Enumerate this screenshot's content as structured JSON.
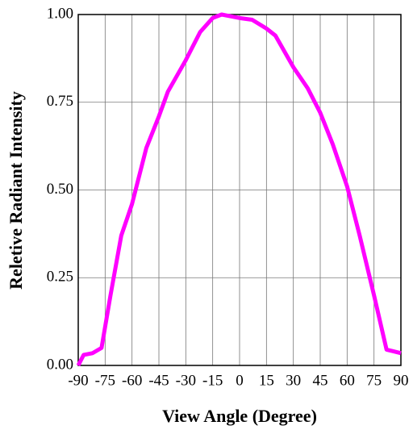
{
  "chart_data": {
    "type": "line",
    "x_label": "View Angle (Degree)",
    "y_label": "Reletive Radiant Intensity",
    "series": [
      {
        "color": "#ff00ff",
        "x": [
          -90,
          -87,
          -82,
          -77,
          -72,
          -66,
          -60,
          -52,
          -45,
          -40,
          -30,
          -22,
          -15,
          -10,
          -5,
          0,
          7,
          15,
          20,
          30,
          38,
          45,
          52,
          60,
          67,
          75,
          82,
          86,
          90
        ],
        "values": [
          0.0,
          0.03,
          0.035,
          0.05,
          0.2,
          0.37,
          0.46,
          0.62,
          0.71,
          0.78,
          0.87,
          0.95,
          0.99,
          1.0,
          0.995,
          0.99,
          0.985,
          0.96,
          0.94,
          0.85,
          0.79,
          0.72,
          0.63,
          0.51,
          0.37,
          0.2,
          0.045,
          0.04,
          0.035
        ]
      }
    ],
    "xlim": [
      -90,
      90
    ],
    "xticks": [
      -90,
      -75,
      -60,
      -45,
      -30,
      -15,
      0,
      15,
      30,
      45,
      60,
      75,
      90
    ],
    "ylim": [
      0,
      1
    ],
    "yticks": [
      {
        "value": 0,
        "label": "0.00"
      },
      {
        "value": 0.25,
        "label": "0.25"
      },
      {
        "value": 0.5,
        "label": "0.50"
      },
      {
        "value": 0.75,
        "label": "0.75"
      },
      {
        "value": 1,
        "label": "1.00"
      }
    ],
    "grid": true
  }
}
